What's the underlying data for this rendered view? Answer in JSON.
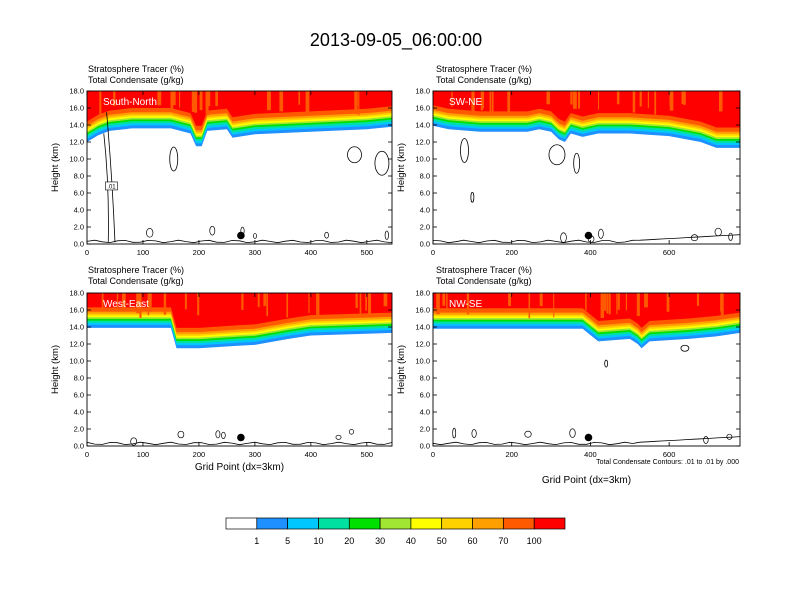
{
  "title": "2013-09-05_06:00:00",
  "panel_header": {
    "line1_name": "Stratosphere Tracer",
    "line1_unit": "(%)",
    "line2_name": "Total Condensate",
    "line2_unit": "(g/kg)"
  },
  "ylabel": "Height (km)",
  "xlabel": "Grid Point (dx=3km)",
  "contour_note": "Total Condensate Contours: .01 to .01 by .000",
  "contour_label": ".01",
  "colors": {
    "levels": [
      "#ffffff",
      "#1e90ff",
      "#00c8ff",
      "#00e0a0",
      "#00e000",
      "#a0e632",
      "#ffff00",
      "#ffd200",
      "#ffa000",
      "#ff5a00",
      "#ff0000"
    ],
    "level_labels": [
      "1",
      "5",
      "10",
      "20",
      "30",
      "40",
      "50",
      "60",
      "70",
      "100"
    ]
  },
  "chart_data": [
    {
      "type": "heatmap",
      "panel_label": "South-North",
      "xlim": [
        0,
        545
      ],
      "ylim": [
        0,
        18
      ],
      "xticks": [
        "0",
        "100",
        "200",
        "300",
        "400",
        "500"
      ],
      "xtick_values": [
        0,
        100,
        200,
        300,
        400,
        500
      ],
      "yticks": [
        "0.0",
        "2.0",
        "4.0",
        "6.0",
        "8.0",
        "10.0",
        "12.0",
        "14.0",
        "16.0",
        "18.0"
      ],
      "tropopause_profile": [
        [
          0,
          12.0
        ],
        [
          20,
          12.8
        ],
        [
          40,
          13.3
        ],
        [
          80,
          13.6
        ],
        [
          150,
          13.6
        ],
        [
          185,
          13.0
        ],
        [
          195,
          11.5
        ],
        [
          205,
          11.5
        ],
        [
          215,
          13.3
        ],
        [
          250,
          13.5
        ],
        [
          260,
          12.5
        ],
        [
          300,
          12.9
        ],
        [
          400,
          13.2
        ],
        [
          500,
          13.5
        ],
        [
          545,
          13.8
        ]
      ],
      "marker_point": [
        275,
        1.0
      ]
    },
    {
      "type": "heatmap",
      "panel_label": "SW-NE",
      "xlim": [
        0,
        780
      ],
      "ylim": [
        0,
        18
      ],
      "xticks": [
        "0",
        "200",
        "400",
        "600"
      ],
      "xtick_values": [
        0,
        200,
        400,
        600
      ],
      "yticks": [
        "0.0",
        "2.0",
        "4.0",
        "6.0",
        "8.0",
        "10.0",
        "12.0",
        "14.0",
        "16.0",
        "18.0"
      ],
      "tropopause_profile": [
        [
          0,
          13.9
        ],
        [
          40,
          13.5
        ],
        [
          120,
          13.2
        ],
        [
          240,
          13.2
        ],
        [
          270,
          13.5
        ],
        [
          300,
          13.2
        ],
        [
          320,
          12.3
        ],
        [
          335,
          12.0
        ],
        [
          350,
          13.0
        ],
        [
          380,
          12.6
        ],
        [
          420,
          13.0
        ],
        [
          500,
          13.0
        ],
        [
          600,
          12.7
        ],
        [
          680,
          12.0
        ],
        [
          720,
          11.3
        ],
        [
          780,
          11.3
        ]
      ],
      "marker_point": [
        395,
        1.0
      ]
    },
    {
      "type": "heatmap",
      "panel_label": "West-East",
      "xlim": [
        0,
        545
      ],
      "ylim": [
        0,
        18
      ],
      "xticks": [
        "0",
        "100",
        "200",
        "300",
        "400",
        "500"
      ],
      "xtick_values": [
        0,
        100,
        200,
        300,
        400,
        500
      ],
      "yticks": [
        "0.0",
        "2.0",
        "4.0",
        "6.0",
        "8.0",
        "10.0",
        "12.0",
        "14.0",
        "16.0",
        "18.0"
      ],
      "tropopause_profile": [
        [
          0,
          13.9
        ],
        [
          150,
          13.9
        ],
        [
          160,
          11.5
        ],
        [
          200,
          11.5
        ],
        [
          270,
          11.8
        ],
        [
          300,
          11.9
        ],
        [
          360,
          12.6
        ],
        [
          400,
          13.0
        ],
        [
          500,
          13.2
        ],
        [
          545,
          13.3
        ]
      ],
      "marker_point": [
        275,
        1.0
      ]
    },
    {
      "type": "heatmap",
      "panel_label": "NW-SE",
      "xlim": [
        0,
        780
      ],
      "ylim": [
        0,
        18
      ],
      "xticks": [
        "0",
        "200",
        "400",
        "600"
      ],
      "xtick_values": [
        0,
        200,
        400,
        600
      ],
      "yticks": [
        "0.0",
        "2.0",
        "4.0",
        "6.0",
        "8.0",
        "10.0",
        "12.0",
        "14.0",
        "16.0",
        "18.0"
      ],
      "tropopause_profile": [
        [
          0,
          13.8
        ],
        [
          200,
          13.8
        ],
        [
          380,
          13.8
        ],
        [
          420,
          12.3
        ],
        [
          500,
          12.6
        ],
        [
          520,
          12.0
        ],
        [
          530,
          11.5
        ],
        [
          550,
          12.3
        ],
        [
          650,
          12.6
        ],
        [
          720,
          12.9
        ],
        [
          780,
          13.3
        ]
      ],
      "marker_point": [
        395,
        1.0
      ]
    }
  ]
}
